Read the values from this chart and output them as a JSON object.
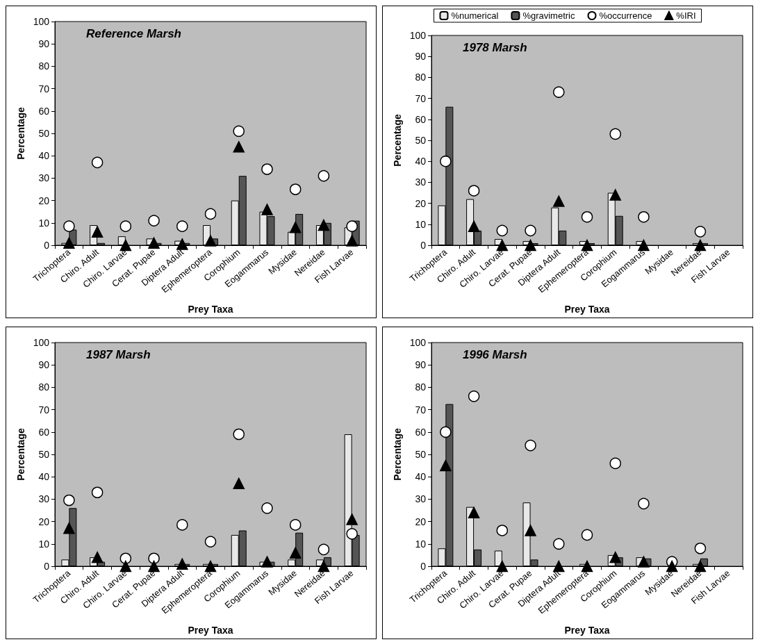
{
  "chart_data": [
    {
      "type": "bar",
      "title": "Reference Marsh",
      "xlabel": "Prey Taxa",
      "ylabel": "Percentage",
      "categories": [
        "Trichoptera",
        "Chiro. Adult",
        "Chiro. Larvae",
        "Cerat. Pupae",
        "Diptera Adult",
        "Ephemeroptera",
        "Corophium",
        "Eogammarus",
        "Mysidae",
        "Nereidae",
        "Fish Larvae"
      ],
      "ylim": [
        0,
        100
      ],
      "yticks": [
        0,
        10,
        20,
        30,
        40,
        50,
        60,
        70,
        80,
        90,
        100
      ],
      "grid": false,
      "series": [
        {
          "color": "#e8e8e8",
          "values": [
            1,
            9,
            4,
            3,
            2,
            9,
            20,
            15,
            6,
            9,
            8
          ]
        },
        {
          "color": "#555555",
          "values": [
            7,
            1,
            0,
            1,
            1,
            3,
            31,
            13,
            14,
            10,
            11
          ]
        },
        {
          "type": "scatter",
          "marker": "circle",
          "color": "#ffffff",
          "values": [
            8.5,
            37,
            8.5,
            11,
            8.5,
            14,
            51,
            34,
            25,
            31,
            8.5
          ]
        },
        {
          "type": "scatter",
          "marker": "triangle",
          "color": "#000000",
          "values": [
            1,
            6,
            0,
            1,
            0.5,
            2,
            44,
            16,
            8,
            9,
            2
          ]
        }
      ]
    },
    {
      "type": "bar",
      "title": "1978 Marsh",
      "xlabel": "Prey Taxa",
      "ylabel": "Percentage",
      "legend": "top",
      "categories": [
        "Trichoptera",
        "Chiro. Adult",
        "Chiro. Larvae",
        "Cerat. Pupae",
        "Diptera Adult",
        "Ephemeroptera",
        "Corophium",
        "Eogammarus",
        "Mysidae",
        "Nereidae",
        "Fish Larvae"
      ],
      "ylim": [
        0,
        100
      ],
      "yticks": [
        0,
        10,
        20,
        30,
        40,
        50,
        60,
        70,
        80,
        90,
        100
      ],
      "grid": false,
      "series": [
        {
          "name": "%numerical",
          "color": "#e8e8e8",
          "values": [
            19,
            22,
            3,
            2,
            18,
            2,
            25,
            2,
            null,
            1,
            null
          ]
        },
        {
          "name": "%gravimetric",
          "color": "#555555",
          "values": [
            66,
            7,
            0,
            1,
            7,
            1,
            14,
            0,
            null,
            1,
            null
          ]
        },
        {
          "name": "%occurrence",
          "type": "scatter",
          "marker": "circle",
          "color": "#ffffff",
          "values": [
            40,
            26,
            7,
            7,
            73,
            13.5,
            53,
            13.5,
            null,
            6.5,
            null
          ]
        },
        {
          "name": "%IRI",
          "type": "scatter",
          "marker": "triangle",
          "color": "#000000",
          "values": [
            null,
            9,
            0,
            0,
            21,
            0,
            24,
            0,
            null,
            0,
            null
          ]
        }
      ]
    },
    {
      "type": "bar",
      "title": "1987 Marsh",
      "xlabel": "Prey Taxa",
      "ylabel": "Percentage",
      "categories": [
        "Trichoptera",
        "Chiro. Adult",
        "Chiro. Larvae",
        "Cerat. Pupae",
        "Diptera Adult",
        "Ephemeroptera",
        "Corophium",
        "Eogammarus",
        "Mysidae",
        "Nereidae",
        "Fish Larvae"
      ],
      "ylim": [
        0,
        100
      ],
      "yticks": [
        0,
        10,
        20,
        30,
        40,
        50,
        60,
        70,
        80,
        90,
        100
      ],
      "grid": false,
      "series": [
        {
          "color": "#e8e8e8",
          "values": [
            3,
            4,
            0,
            0,
            1,
            1,
            14,
            2,
            3,
            3,
            59
          ]
        },
        {
          "color": "#555555",
          "values": [
            26,
            2,
            0,
            0,
            1,
            1,
            16,
            2,
            15,
            4,
            14
          ]
        },
        {
          "type": "scatter",
          "marker": "circle",
          "color": "#ffffff",
          "values": [
            29.5,
            33,
            3.5,
            3.5,
            18.5,
            11,
            59,
            26,
            18.5,
            7.5,
            14.5
          ]
        },
        {
          "type": "scatter",
          "marker": "triangle",
          "color": "#000000",
          "values": [
            17,
            4,
            0,
            0,
            1,
            0,
            37,
            2,
            6,
            0,
            21
          ]
        }
      ]
    },
    {
      "type": "bar",
      "title": "1996 Marsh",
      "xlabel": "Prey Taxa",
      "ylabel": "Percentage",
      "categories": [
        "Trichoptera",
        "Chiro. Adult",
        "Chiro. Larvae",
        "Cerat. Pupae",
        "Diptera Adult",
        "Ephemeroptera",
        "Corophium",
        "Eogammarus",
        "Mysidae",
        "Nereidae",
        "Fish Larvae"
      ],
      "ylim": [
        0,
        100
      ],
      "yticks": [
        0,
        10,
        20,
        30,
        40,
        50,
        60,
        70,
        80,
        90,
        100
      ],
      "grid": false,
      "series": [
        {
          "color": "#e8e8e8",
          "values": [
            8,
            26.5,
            7,
            28.5,
            0,
            1,
            5,
            4,
            0,
            1,
            null
          ]
        },
        {
          "color": "#555555",
          "values": [
            72.5,
            7.5,
            0,
            3,
            0,
            0,
            4,
            3.5,
            0,
            3.5,
            null
          ]
        },
        {
          "type": "scatter",
          "marker": "circle",
          "color": "#ffffff",
          "values": [
            60,
            76,
            16,
            54,
            10,
            14,
            46,
            28,
            2,
            8,
            null
          ]
        },
        {
          "type": "scatter",
          "marker": "triangle",
          "color": "#000000",
          "values": [
            45,
            24,
            0,
            16,
            0,
            0,
            4,
            2,
            0,
            0,
            null
          ]
        }
      ]
    }
  ]
}
